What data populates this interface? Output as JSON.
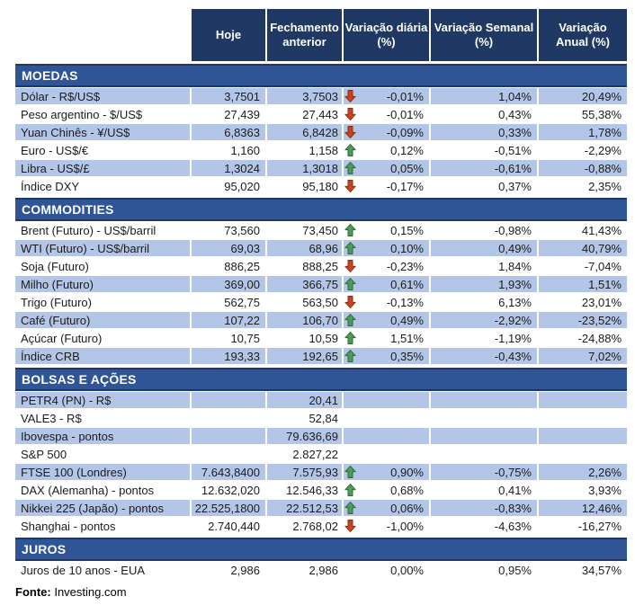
{
  "chart_data": {
    "type": "table",
    "columns": [
      "Hoje",
      "Fechamento\nanterior",
      "Variação diária\n(%)",
      "Variação Semanal\n(%)",
      "Variação\nAnual (%)"
    ],
    "sections": [
      {
        "title": "MOEDAS",
        "zebra_start": "shaded",
        "rows": [
          {
            "label": "Dólar - R$/US$",
            "hoje": "3,7501",
            "fechamento": "3,7503",
            "arrow": "down",
            "var_diaria": "-0,01%",
            "var_semanal": "1,04%",
            "var_anual": "20,49%"
          },
          {
            "label": "Peso argentino - $/US$",
            "hoje": "27,439",
            "fechamento": "27,443",
            "arrow": "down",
            "var_diaria": "-0,01%",
            "var_semanal": "0,43%",
            "var_anual": "55,38%"
          },
          {
            "label": "Yuan Chinês - ¥/US$",
            "hoje": "6,8363",
            "fechamento": "6,8428",
            "arrow": "down",
            "var_diaria": "-0,09%",
            "var_semanal": "0,33%",
            "var_anual": "1,78%"
          },
          {
            "label": "Euro - US$/€",
            "hoje": "1,160",
            "fechamento": "1,158",
            "arrow": "up",
            "var_diaria": "0,12%",
            "var_semanal": "-0,51%",
            "var_anual": "-2,29%"
          },
          {
            "label": "Libra - US$/£",
            "hoje": "1,3024",
            "fechamento": "1,3018",
            "arrow": "up",
            "var_diaria": "0,05%",
            "var_semanal": "-0,61%",
            "var_anual": "-0,88%"
          },
          {
            "label": "Índice DXY",
            "hoje": "95,020",
            "fechamento": "95,180",
            "arrow": "down",
            "var_diaria": "-0,17%",
            "var_semanal": "0,37%",
            "var_anual": "2,35%"
          }
        ]
      },
      {
        "title": "COMMODITIES",
        "zebra_start": "white",
        "rows": [
          {
            "label": "Brent (Futuro) - US$/barril",
            "hoje": "73,560",
            "fechamento": "73,450",
            "arrow": "up",
            "var_diaria": "0,15%",
            "var_semanal": "-0,98%",
            "var_anual": "41,43%"
          },
          {
            "label": "WTI (Futuro) - US$/barril",
            "hoje": "69,03",
            "fechamento": "68,96",
            "arrow": "up",
            "var_diaria": "0,10%",
            "var_semanal": "0,49%",
            "var_anual": "40,79%"
          },
          {
            "label": "Soja (Futuro)",
            "hoje": "886,25",
            "fechamento": "888,25",
            "arrow": "down",
            "var_diaria": "-0,23%",
            "var_semanal": "1,84%",
            "var_anual": "-7,04%"
          },
          {
            "label": "Milho (Futuro)",
            "hoje": "369,00",
            "fechamento": "366,75",
            "arrow": "up",
            "var_diaria": "0,61%",
            "var_semanal": "1,93%",
            "var_anual": "1,51%"
          },
          {
            "label": "Trigo (Futuro)",
            "hoje": "562,75",
            "fechamento": "563,50",
            "arrow": "down",
            "var_diaria": "-0,13%",
            "var_semanal": "6,13%",
            "var_anual": "23,01%"
          },
          {
            "label": "Café (Futuro)",
            "hoje": "107,22",
            "fechamento": "106,70",
            "arrow": "up",
            "var_diaria": "0,49%",
            "var_semanal": "-2,92%",
            "var_anual": "-23,52%"
          },
          {
            "label": "Açúcar (Futuro)",
            "hoje": "10,75",
            "fechamento": "10,59",
            "arrow": "up",
            "var_diaria": "1,51%",
            "var_semanal": "-1,19%",
            "var_anual": "-24,88%"
          },
          {
            "label": "Índice CRB",
            "hoje": "193,33",
            "fechamento": "192,65",
            "arrow": "up",
            "var_diaria": "0,35%",
            "var_semanal": "-0,43%",
            "var_anual": "7,02%"
          }
        ]
      },
      {
        "title": "BOLSAS E AÇÕES",
        "zebra_start": "shaded",
        "rows": [
          {
            "label": "PETR4 (PN) - R$",
            "hoje": "",
            "fechamento": "20,41",
            "arrow": "",
            "var_diaria": "",
            "var_semanal": "",
            "var_anual": ""
          },
          {
            "label": "VALE3 - R$",
            "hoje": "",
            "fechamento": "52,84",
            "arrow": "",
            "var_diaria": "",
            "var_semanal": "",
            "var_anual": ""
          },
          {
            "label": "Ibovespa - pontos",
            "hoje": "",
            "fechamento": "79.636,69",
            "arrow": "",
            "var_diaria": "",
            "var_semanal": "",
            "var_anual": ""
          },
          {
            "label": "S&P 500",
            "hoje": "",
            "fechamento": "2.827,22",
            "arrow": "",
            "var_diaria": "",
            "var_semanal": "",
            "var_anual": ""
          },
          {
            "label": "FTSE 100 (Londres)",
            "hoje": "7.643,8400",
            "fechamento": "7.575,93",
            "arrow": "up",
            "var_diaria": "0,90%",
            "var_semanal": "-0,75%",
            "var_anual": "2,26%"
          },
          {
            "label": "DAX (Alemanha) - pontos",
            "hoje": "12.632,020",
            "fechamento": "12.546,33",
            "arrow": "up",
            "var_diaria": "0,68%",
            "var_semanal": "0,41%",
            "var_anual": "3,93%"
          },
          {
            "label": "Nikkei 225 (Japão) - pontos",
            "hoje": "22.525,1800",
            "fechamento": "22.512,53",
            "arrow": "up",
            "var_diaria": "0,06%",
            "var_semanal": "-0,83%",
            "var_anual": "12,46%"
          },
          {
            "label": "Shanghai - pontos",
            "hoje": "2.740,440",
            "fechamento": "2.768,02",
            "arrow": "down",
            "var_diaria": "-1,00%",
            "var_semanal": "-4,63%",
            "var_anual": "-16,27%"
          }
        ]
      },
      {
        "title": "JUROS",
        "zebra_start": "white",
        "rows": [
          {
            "label": "Juros de 10 anos - EUA",
            "hoje": "2,986",
            "fechamento": "2,986",
            "arrow": "",
            "var_diaria": "0,00%",
            "var_semanal": "0,95%",
            "var_anual": "34,57%"
          }
        ]
      }
    ],
    "source": {
      "label": "Fonte:",
      "value": "Investing.com"
    }
  },
  "colors": {
    "header_bg": "#1F3864",
    "section_bg": "#2F5597",
    "row_shade": "#B4C6E7",
    "arrow_up": "#4F9B58",
    "arrow_up_edge": "#2F6B3A",
    "arrow_down": "#C8431F",
    "arrow_down_edge": "#8E2F14"
  }
}
